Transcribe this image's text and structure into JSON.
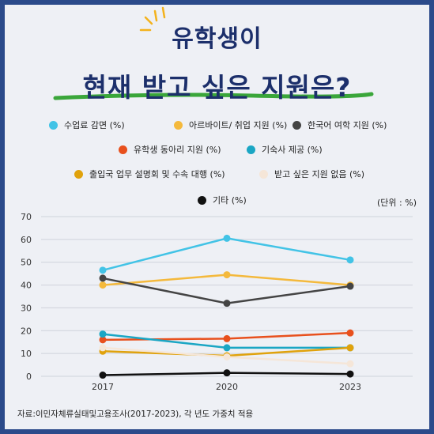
{
  "page": {
    "title_line1": "유학생이",
    "title_line2": "현재 받고 싶은 지원은?",
    "unit_label": "(단위 : %)",
    "source": "자료:이민자체류실태및고용조사(2017-2023), 각 년도 가중치 적용",
    "accent_underline": "#3aa63a",
    "accent_sparkle": "#f3b21d"
  },
  "chart_data": {
    "type": "line",
    "x": [
      "2017",
      "2020",
      "2023"
    ],
    "ylim": [
      0,
      70
    ],
    "yticks": [
      "0",
      "10",
      "20",
      "30",
      "40",
      "50",
      "60",
      "70"
    ],
    "grid": true,
    "legend_position": "top",
    "series": [
      {
        "name": "수업료 감면 (%)",
        "color": "#42c3e6",
        "values": [
          46.5,
          60.5,
          51.0
        ]
      },
      {
        "name": "아르바이트/ 취업 지원 (%)",
        "color": "#f4b93c",
        "values": [
          40.0,
          44.5,
          40.0
        ]
      },
      {
        "name": "한국어 여학 지원 (%)",
        "color": "#444444",
        "values": [
          43.0,
          32.0,
          39.5
        ]
      },
      {
        "name": "유학생 동아리 지원 (%)",
        "color": "#e8501d",
        "values": [
          16.0,
          16.5,
          19.0
        ]
      },
      {
        "name": "기숙사 제공 (%)",
        "color": "#1aa6c4",
        "values": [
          18.5,
          12.5,
          12.5
        ]
      },
      {
        "name": "출입국 업무 설명회 및 수속 대행 (%)",
        "color": "#e0a20c",
        "values": [
          11.0,
          9.0,
          12.5
        ]
      },
      {
        "name": "받고 싶은 지원 없음 (%)",
        "color": "#f5e6d8",
        "values": [
          12.5,
          8.5,
          5.5
        ]
      },
      {
        "name": "기타 (%)",
        "color": "#111111",
        "values": [
          0.5,
          1.5,
          1.0
        ]
      }
    ]
  }
}
